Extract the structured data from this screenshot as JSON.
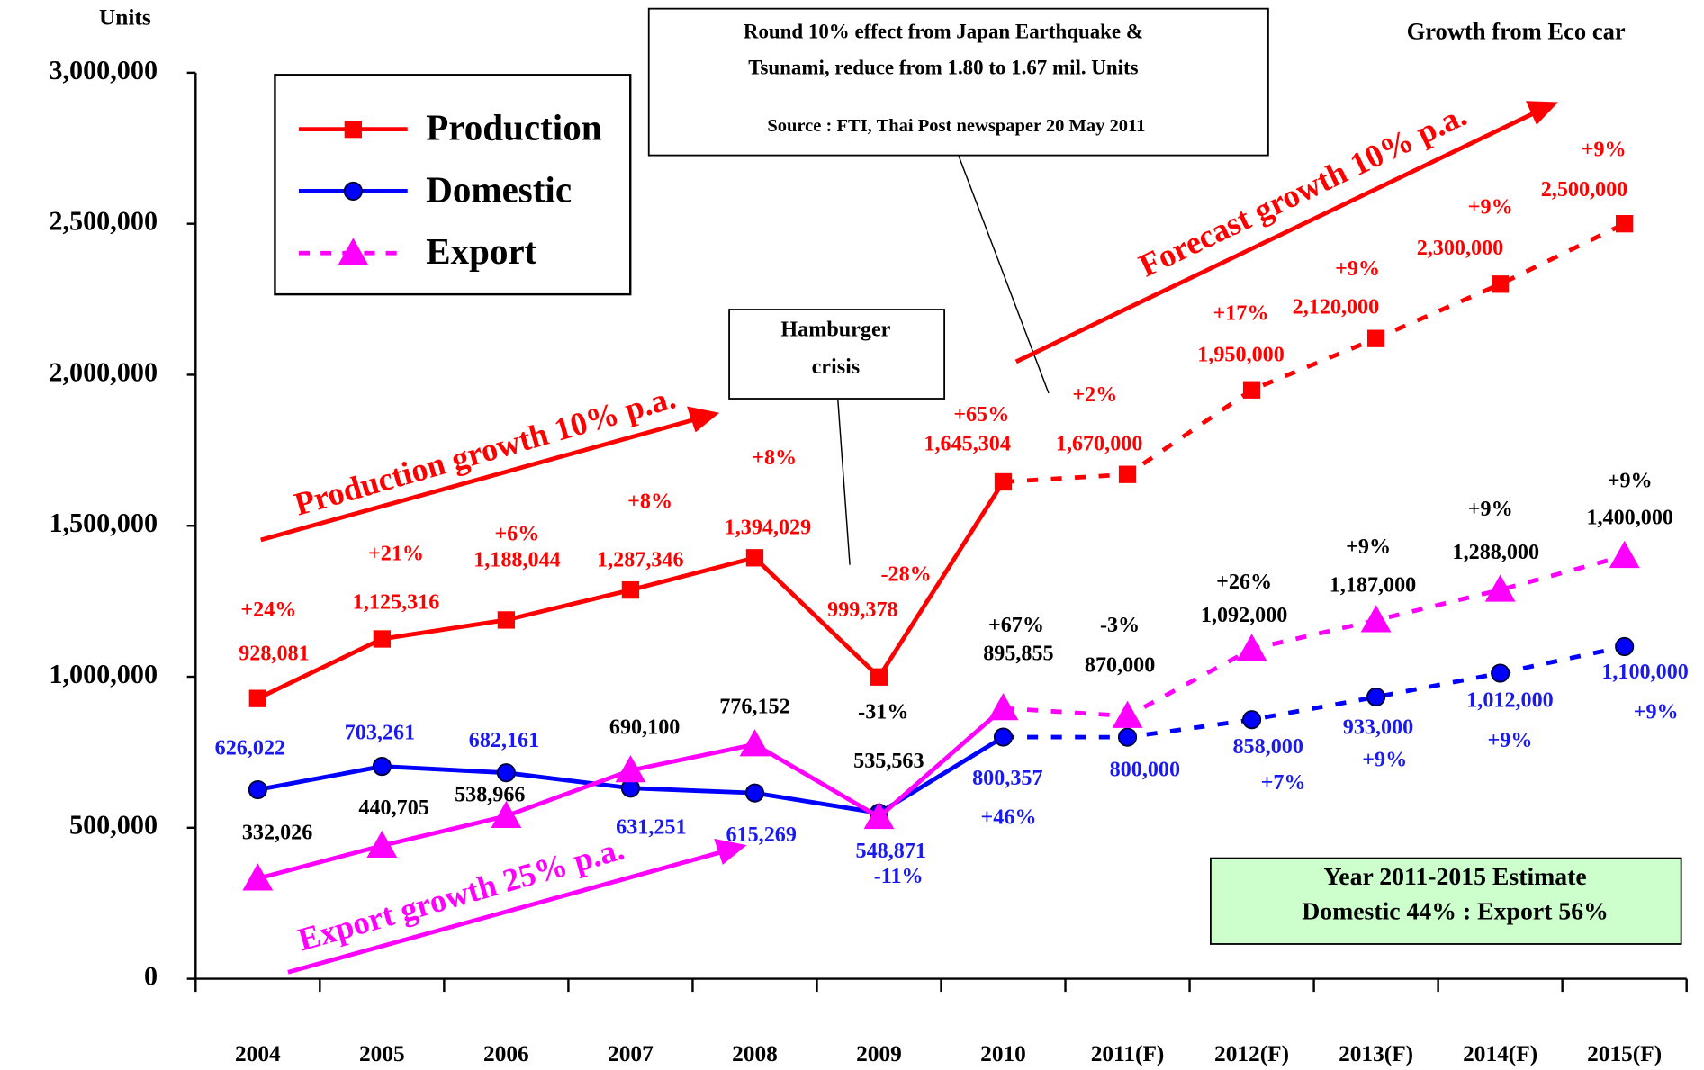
{
  "chart_data": {
    "type": "line",
    "y_unit": "Units",
    "categories": [
      "2004",
      "2005",
      "2006",
      "2007",
      "2008",
      "2009",
      "2010",
      "2011(F)",
      "2012(F)",
      "2013(F)",
      "2014(F)",
      "2015(F)"
    ],
    "forecast_start_index": 6,
    "ylim": [
      0,
      3000000
    ],
    "yticks": [
      {
        "value": 0,
        "label": "0"
      },
      {
        "value": 500000,
        "label": "500,000"
      },
      {
        "value": 1000000,
        "label": "1,000,000"
      },
      {
        "value": 1500000,
        "label": "1,500,000"
      },
      {
        "value": 2000000,
        "label": "2,000,000"
      },
      {
        "value": 2500000,
        "label": "2,500,000"
      },
      {
        "value": 3000000,
        "label": "3,000,000"
      }
    ],
    "series": [
      {
        "name": "Production",
        "color": "#ff0000",
        "marker": "square",
        "label_color": "#ff0000",
        "values": [
          928081,
          1125316,
          1188044,
          1287346,
          1394029,
          999378,
          1645304,
          1670000,
          1950000,
          2120000,
          2300000,
          2500000
        ],
        "value_labels": [
          "928,081",
          "1,125,316",
          "1,188,044",
          "1,287,346",
          "1,394,029",
          "999,378",
          "1,645,304",
          "1,670,000",
          "1,950,000",
          "2,120,000",
          "2,300,000",
          "2,500,000"
        ],
        "growth_labels": [
          "+24%",
          "+21%",
          "+6%",
          "+8%",
          "+8%",
          "-28%",
          "+65%",
          "+2%",
          "+17%",
          "+9%",
          "+9%",
          "+9%"
        ]
      },
      {
        "name": "Domestic",
        "color": "#0000ff",
        "marker": "circle",
        "label_color": "#1a1aee",
        "values": [
          626022,
          703261,
          682161,
          631251,
          615269,
          548871,
          800357,
          800000,
          858000,
          933000,
          1012000,
          1100000
        ],
        "value_labels": [
          "626,022",
          "703,261",
          "682,161",
          "631,251",
          "615,269",
          "548,871",
          "800,357",
          "800,000",
          "858,000",
          "933,000",
          "1,012,000",
          "1,100,000"
        ],
        "growth_labels": [
          null,
          null,
          null,
          null,
          null,
          "-11%",
          "+46%",
          null,
          "+7%",
          "+9%",
          "+9%",
          "+9%"
        ]
      },
      {
        "name": "Export",
        "color": "#ff00ff",
        "marker": "triangle",
        "label_color": "#000000",
        "values": [
          332026,
          440705,
          538966,
          690100,
          776152,
          535563,
          895855,
          870000,
          1092000,
          1187000,
          1288000,
          1400000
        ],
        "value_labels": [
          "332,026",
          "440,705",
          "538,966",
          "690,100",
          "776,152",
          "535,563",
          "895,855",
          "870,000",
          "1,092,000",
          "1,187,000",
          "1,288,000",
          "1,400,000"
        ],
        "growth_labels": [
          null,
          null,
          null,
          null,
          null,
          "-31%",
          "+67%",
          "-3%",
          "+26%",
          "+9%",
          "+9%",
          "+9%"
        ]
      }
    ],
    "annotations": [
      "Round 10% effect from Japan  Earthquake  &",
      "Tsunami, reduce from 1.80 to 1.67 mil. Units",
      "Source : FTI, Thai Post newspaper 20 May 2011",
      "Growth from Eco car",
      "Hamburger",
      "crisis",
      "Production growth 10% p.a.",
      "Forecast growth 10% p.a.",
      "Export growth 25% p.a.",
      "Year 2011-2015 Estimate",
      "Domestic 44% : Export 56%"
    ]
  }
}
